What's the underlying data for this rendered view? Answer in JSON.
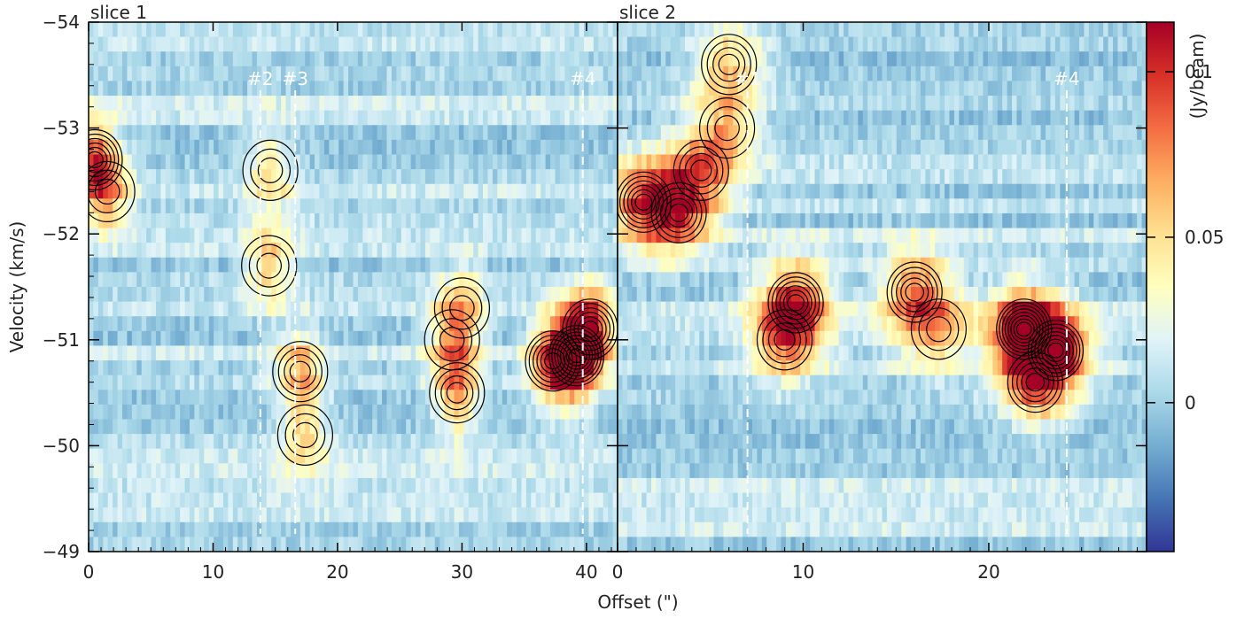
{
  "chart_data": {
    "type": "heatmap",
    "ylabel": "Velocity (km/s)",
    "xlabel": "Offset (\")",
    "ylim": [
      -54,
      -49
    ],
    "y_ticks": [
      -54,
      -53,
      -52,
      -51,
      -50,
      -49
    ],
    "y_tick_labels": [
      "−54",
      "−53",
      "−52",
      "−51",
      "−50",
      "−49"
    ],
    "colorbar": {
      "label": "(Jy/beam)",
      "range": [
        -0.045,
        0.115
      ],
      "ticks": [
        0.1,
        0.05,
        0
      ],
      "tick_labels": [
        "0.1",
        "0.05",
        "0"
      ],
      "colormap": [
        "#313695",
        "#4575b4",
        "#74add1",
        "#abd9e9",
        "#e0f3f8",
        "#ffffbf",
        "#fee090",
        "#fdae61",
        "#f46d43",
        "#d73027",
        "#a50026"
      ]
    },
    "panels": [
      {
        "title": "slice 1",
        "xlim": [
          0,
          42.5
        ],
        "x_ticks": [
          0,
          10,
          20,
          30,
          40
        ],
        "x_tick_labels": [
          "0",
          "10",
          "20",
          "30",
          "40"
        ],
        "markers": [
          {
            "label": "#2",
            "offset": 13.8
          },
          {
            "label": "#3",
            "offset": 16.6
          },
          {
            "label": "#4",
            "offset": 39.7
          }
        ],
        "emission_peaks": [
          {
            "offset": 0.5,
            "velocity": -52.7,
            "peak": 0.085
          },
          {
            "offset": 1.5,
            "velocity": -52.4,
            "peak": 0.05
          },
          {
            "offset": 14.6,
            "velocity": -52.6,
            "peak": 0.045
          },
          {
            "offset": 14.5,
            "velocity": -51.7,
            "peak": 0.05
          },
          {
            "offset": 17.0,
            "velocity": -50.7,
            "peak": 0.06
          },
          {
            "offset": 17.4,
            "velocity": -50.1,
            "peak": 0.045
          },
          {
            "offset": 29.6,
            "velocity": -50.5,
            "peak": 0.065
          },
          {
            "offset": 29.2,
            "velocity": -51.0,
            "peak": 0.05
          },
          {
            "offset": 30.0,
            "velocity": -51.3,
            "peak": 0.045
          },
          {
            "offset": 39.2,
            "velocity": -50.85,
            "peak": 0.115
          },
          {
            "offset": 37.3,
            "velocity": -50.8,
            "peak": 0.09
          },
          {
            "offset": 40.3,
            "velocity": -51.1,
            "peak": 0.095
          }
        ]
      },
      {
        "title": "slice 2",
        "xlim": [
          0,
          28.5
        ],
        "x_ticks": [
          0,
          10,
          20
        ],
        "x_tick_labels": [
          "0",
          "10",
          "20"
        ],
        "markers": [
          {
            "label": "#1",
            "offset": 7.0
          },
          {
            "label": "#4",
            "offset": 24.2
          }
        ],
        "emission_peaks": [
          {
            "offset": 1.4,
            "velocity": -52.3,
            "peak": 0.085
          },
          {
            "offset": 3.3,
            "velocity": -52.2,
            "peak": 0.08
          },
          {
            "offset": 4.5,
            "velocity": -52.6,
            "peak": 0.06
          },
          {
            "offset": 6.0,
            "velocity": -53.6,
            "peak": 0.055
          },
          {
            "offset": 5.9,
            "velocity": -53.0,
            "peak": 0.05
          },
          {
            "offset": 9.6,
            "velocity": -51.35,
            "peak": 0.095
          },
          {
            "offset": 9.0,
            "velocity": -51.0,
            "peak": 0.06
          },
          {
            "offset": 16.0,
            "velocity": -51.45,
            "peak": 0.075
          },
          {
            "offset": 17.3,
            "velocity": -51.1,
            "peak": 0.05
          },
          {
            "offset": 21.9,
            "velocity": -51.1,
            "peak": 0.115
          },
          {
            "offset": 23.6,
            "velocity": -50.9,
            "peak": 0.1
          },
          {
            "offset": 22.5,
            "velocity": -50.6,
            "peak": 0.07
          }
        ]
      }
    ]
  }
}
